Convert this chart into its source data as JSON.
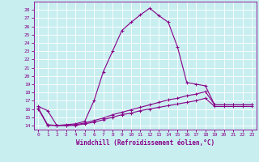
{
  "xlabel": "Windchill (Refroidissement éolien,°C)",
  "background_color": "#c8eef0",
  "grid_color": "#b0d8dc",
  "line_color": "#880088",
  "xlim": [
    -0.5,
    23.5
  ],
  "ylim": [
    13.5,
    29.0
  ],
  "xticks": [
    0,
    1,
    2,
    3,
    4,
    5,
    6,
    7,
    8,
    9,
    10,
    11,
    12,
    13,
    14,
    15,
    16,
    17,
    18,
    19,
    20,
    21,
    22,
    23
  ],
  "yticks": [
    14,
    15,
    16,
    17,
    18,
    19,
    20,
    21,
    22,
    23,
    24,
    25,
    26,
    27,
    28
  ],
  "series1_x": [
    0,
    1,
    2,
    3,
    4,
    5,
    6,
    7,
    8,
    9,
    10,
    11,
    12,
    13,
    14,
    15,
    16,
    17,
    18,
    19,
    20,
    21,
    22,
    23
  ],
  "series1_y": [
    16.3,
    15.8,
    14.0,
    14.1,
    14.2,
    14.5,
    17.0,
    20.5,
    23.0,
    25.5,
    26.5,
    27.4,
    28.2,
    27.3,
    26.5,
    23.5,
    19.2,
    19.0,
    18.8,
    16.5,
    16.5,
    16.5,
    16.5,
    16.5
  ],
  "series2_x": [
    0,
    1,
    2,
    3,
    4,
    5,
    6,
    7,
    8,
    9,
    10,
    11,
    12,
    13,
    14,
    15,
    16,
    17,
    18,
    19,
    20,
    21,
    22,
    23
  ],
  "series2_y": [
    16.1,
    14.1,
    14.0,
    14.0,
    14.1,
    14.3,
    14.6,
    14.9,
    15.3,
    15.6,
    15.9,
    16.2,
    16.5,
    16.8,
    17.1,
    17.3,
    17.6,
    17.8,
    18.1,
    16.5,
    16.5,
    16.5,
    16.5,
    16.5
  ],
  "series3_x": [
    0,
    1,
    2,
    3,
    4,
    5,
    6,
    7,
    8,
    9,
    10,
    11,
    12,
    13,
    14,
    15,
    16,
    17,
    18,
    19,
    20,
    21,
    22,
    23
  ],
  "series3_y": [
    16.0,
    14.0,
    14.0,
    14.0,
    14.0,
    14.2,
    14.4,
    14.7,
    15.0,
    15.3,
    15.5,
    15.8,
    16.0,
    16.2,
    16.4,
    16.6,
    16.8,
    17.0,
    17.3,
    16.3,
    16.3,
    16.3,
    16.3,
    16.3
  ]
}
